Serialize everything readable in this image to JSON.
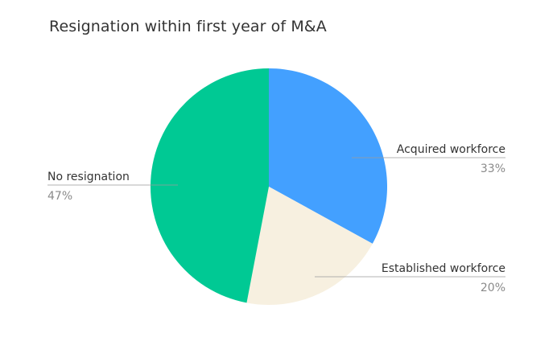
{
  "chart_data": {
    "type": "pie",
    "title": "Resignation within first year of M&A",
    "slices": [
      {
        "label": "Acquired workforce",
        "value": 33,
        "display": "33%",
        "color": "#43a0ff",
        "label_side": "right"
      },
      {
        "label": "Established workforce",
        "value": 20,
        "display": "20%",
        "color": "#f7f0e0",
        "label_side": "right"
      },
      {
        "label": "No resignation",
        "value": 47,
        "display": "47%",
        "color": "#00c994",
        "label_side": "left"
      }
    ],
    "start": "top",
    "direction": "clockwise",
    "legend": "none"
  }
}
